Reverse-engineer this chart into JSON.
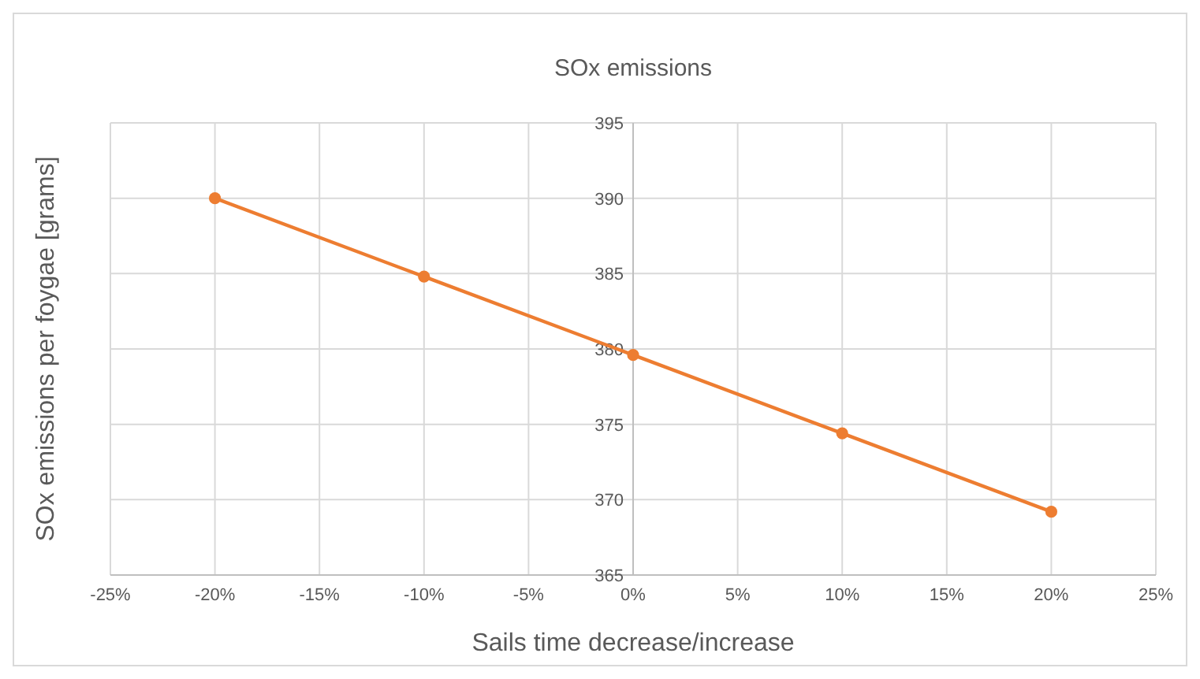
{
  "chart_data": {
    "type": "line",
    "title": "SOx emissions",
    "xlabel": "Sails time decrease/increase",
    "ylabel": "SOx emissions per foygae [grams]",
    "x": [
      -20,
      -10,
      0,
      10,
      20
    ],
    "series": [
      {
        "color": "#ed7d31",
        "values": [
          390.0,
          384.8,
          379.6,
          374.4,
          369.2
        ]
      }
    ],
    "xlim": [
      -25,
      25
    ],
    "xticks": [
      {
        "value": -25,
        "label": "-25%"
      },
      {
        "value": -20,
        "label": "-20%"
      },
      {
        "value": -15,
        "label": "-15%"
      },
      {
        "value": -10,
        "label": "-10%"
      },
      {
        "value": -5,
        "label": "-5%"
      },
      {
        "value": 0,
        "label": "0%"
      },
      {
        "value": 5,
        "label": "5%"
      },
      {
        "value": 10,
        "label": "10%"
      },
      {
        "value": 15,
        "label": "15%"
      },
      {
        "value": 20,
        "label": "20%"
      },
      {
        "value": 25,
        "label": "25%"
      }
    ],
    "ylim": [
      365,
      395
    ],
    "yticks": [
      365,
      370,
      375,
      380,
      385,
      390,
      395
    ],
    "grid": true,
    "marker": "circle",
    "line_style": "solid"
  }
}
